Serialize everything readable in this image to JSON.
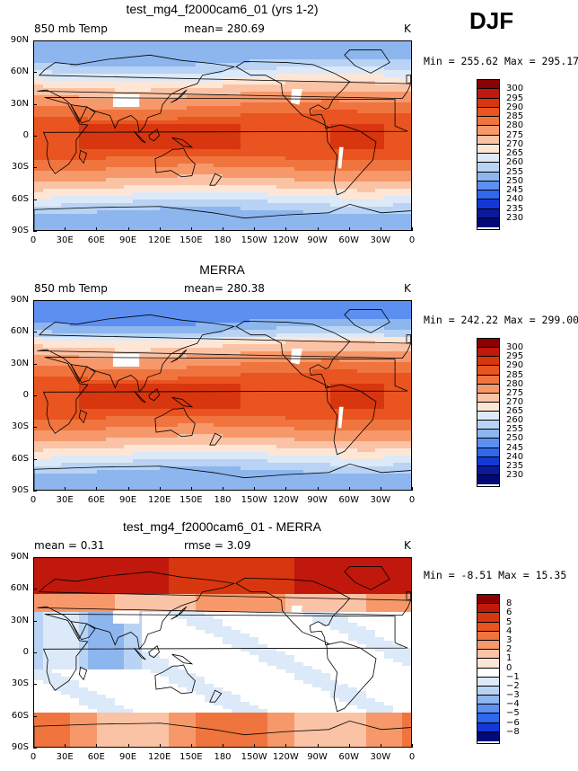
{
  "season": "DJF",
  "panels": [
    {
      "title": "test_mg4_f2000cam6_01 (yrs 1-2)",
      "left_label": "850 mb Temp",
      "center_label": "mean= 280.69",
      "units": "K",
      "minmax": "Min = 255.62  Max = 295.17",
      "colorbar": [
        "300",
        "295",
        "290",
        "285",
        "280",
        "275",
        "270",
        "265",
        "260",
        "255",
        "250",
        "245",
        "240",
        "235",
        "230"
      ]
    },
    {
      "title": "MERRA",
      "left_label": "850 mb Temp",
      "center_label": "mean= 280.38",
      "units": "K",
      "minmax": "Min = 242.22  Max = 299.00",
      "colorbar": [
        "300",
        "295",
        "290",
        "285",
        "280",
        "275",
        "270",
        "265",
        "260",
        "255",
        "250",
        "245",
        "240",
        "235",
        "230"
      ]
    },
    {
      "title": "test_mg4_f2000cam6_01 - MERRA",
      "left_label": "mean =    0.31",
      "center_label": "rmse =    3.09",
      "units": "K",
      "minmax": "Min =  -8.51  Max =  15.35",
      "colorbar": [
        "8",
        "6",
        "5",
        "4",
        "3",
        "2",
        "1",
        "0",
        "−1",
        "−2",
        "−3",
        "−4",
        "−5",
        "−6",
        "−8"
      ]
    }
  ],
  "lat_labels": [
    "90N",
    "60N",
    "30N",
    "0",
    "30S",
    "60S",
    "90S"
  ],
  "lon_labels": [
    "0",
    "30E",
    "60E",
    "90E",
    "120E",
    "150E",
    "180",
    "150W",
    "120W",
    "90W",
    "60W",
    "30W",
    "0"
  ],
  "colors": {
    "abs": [
      "#8b0000",
      "#c0180c",
      "#d8360f",
      "#e95420",
      "#f0743e",
      "#f6986a",
      "#fbc3a5",
      "#fde6d6",
      "#dce9f8",
      "#b9d3f4",
      "#8db6ee",
      "#5c8ff0",
      "#2f68ee",
      "#1438d8",
      "#0a1a9a",
      "#000a78"
    ],
    "diff": [
      "#8b0000",
      "#c0180c",
      "#d8360f",
      "#e95420",
      "#f0743e",
      "#f6986a",
      "#fbc3a5",
      "#fde6d6",
      "#ffffff",
      "#dce9f8",
      "#b9d3f4",
      "#8db6ee",
      "#5c8ff0",
      "#2f68ee",
      "#1438d8",
      "#000a78"
    ]
  }
}
